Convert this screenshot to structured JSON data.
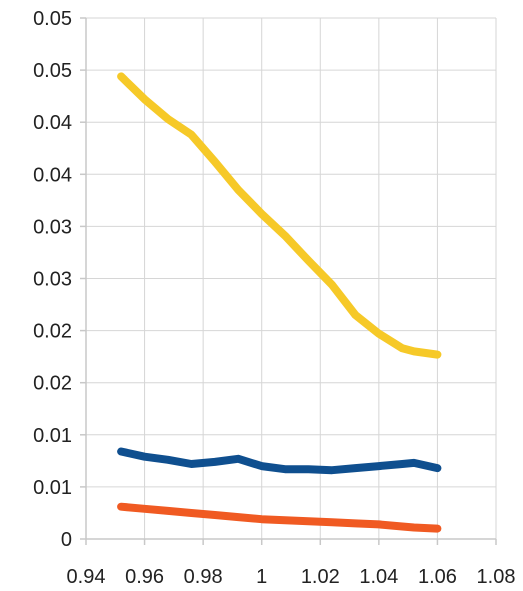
{
  "chart_data": {
    "type": "line",
    "title": "",
    "xlabel": "",
    "ylabel": "",
    "grid": true,
    "legend": "none",
    "xlim": [
      0.94,
      1.08
    ],
    "ylim": [
      0,
      0.05
    ],
    "x_ticks": [
      "0.94",
      "0.96",
      "0.98",
      "1",
      "1.02",
      "1.04",
      "1.06",
      "1.08"
    ],
    "y_ticks": [
      "0",
      "0.01",
      "0.01",
      "0.02",
      "0.02",
      "0.03",
      "0.03",
      "0.04",
      "0.04",
      "0.05",
      "0.05"
    ],
    "series": [
      {
        "color": "#f6c928",
        "x": [
          0.952,
          0.96,
          0.968,
          0.976,
          0.984,
          0.992,
          1.0,
          1.008,
          1.016,
          1.024,
          1.032,
          1.04,
          1.048,
          1.052,
          1.06
        ],
        "y": [
          0.0444,
          0.0422,
          0.0403,
          0.0388,
          0.0362,
          0.0335,
          0.0312,
          0.0291,
          0.0267,
          0.0244,
          0.0215,
          0.0197,
          0.0183,
          0.018,
          0.0177
        ]
      },
      {
        "color": "#0f4f8f",
        "x": [
          0.952,
          0.96,
          0.968,
          0.976,
          0.984,
          0.992,
          1.0,
          1.008,
          1.016,
          1.024,
          1.032,
          1.04,
          1.048,
          1.052,
          1.06
        ],
        "y": [
          0.0084,
          0.0079,
          0.0076,
          0.0072,
          0.0074,
          0.0077,
          0.007,
          0.0067,
          0.0067,
          0.0066,
          0.0068,
          0.007,
          0.0072,
          0.0073,
          0.0068
        ]
      },
      {
        "color": "#f05a22",
        "x": [
          0.952,
          0.96,
          0.968,
          0.976,
          0.984,
          0.992,
          1.0,
          1.008,
          1.016,
          1.024,
          1.032,
          1.04,
          1.048,
          1.052,
          1.06
        ],
        "y": [
          0.0031,
          0.0029,
          0.0027,
          0.0025,
          0.0023,
          0.0021,
          0.0019,
          0.0018,
          0.0017,
          0.0016,
          0.0015,
          0.0014,
          0.0012,
          0.0011,
          0.001
        ]
      }
    ]
  }
}
